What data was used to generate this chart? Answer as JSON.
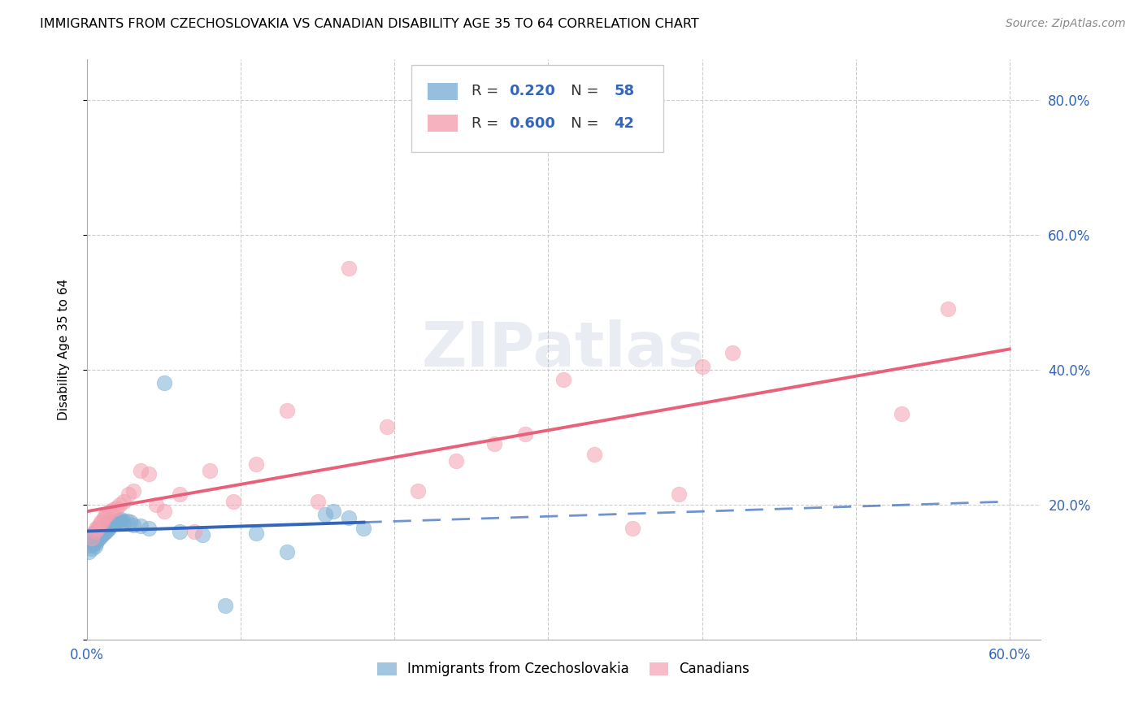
{
  "title": "IMMIGRANTS FROM CZECHOSLOVAKIA VS CANADIAN DISABILITY AGE 35 TO 64 CORRELATION CHART",
  "source": "Source: ZipAtlas.com",
  "ylabel": "Disability Age 35 to 64",
  "xlim": [
    0.0,
    0.62
  ],
  "ylim": [
    0.0,
    0.86
  ],
  "x_tick_values": [
    0.0,
    0.1,
    0.2,
    0.3,
    0.4,
    0.5,
    0.6
  ],
  "x_tick_labels_show": {
    "0.0": "0.0%",
    "0.6": "60.0%"
  },
  "right_y_tick_values": [
    0.2,
    0.4,
    0.6,
    0.8
  ],
  "right_y_tick_labels": [
    "20.0%",
    "40.0%",
    "60.0%",
    "80.0%"
  ],
  "blue_color": "#7BAFD4",
  "blue_line_color": "#3366BB",
  "pink_color": "#F4A0B0",
  "pink_line_color": "#E8607A",
  "blue_R": 0.22,
  "blue_N": 58,
  "pink_R": 0.6,
  "pink_N": 42,
  "watermark": "ZIPatlas",
  "blue_scatter_x": [
    0.001,
    0.002,
    0.002,
    0.003,
    0.003,
    0.003,
    0.004,
    0.004,
    0.004,
    0.005,
    0.005,
    0.005,
    0.006,
    0.006,
    0.006,
    0.007,
    0.007,
    0.007,
    0.008,
    0.008,
    0.008,
    0.009,
    0.009,
    0.01,
    0.01,
    0.011,
    0.011,
    0.012,
    0.012,
    0.013,
    0.013,
    0.014,
    0.014,
    0.015,
    0.015,
    0.016,
    0.017,
    0.018,
    0.019,
    0.02,
    0.021,
    0.022,
    0.024,
    0.026,
    0.028,
    0.03,
    0.035,
    0.04,
    0.05,
    0.06,
    0.075,
    0.09,
    0.11,
    0.13,
    0.155,
    0.16,
    0.17,
    0.18
  ],
  "blue_scatter_y": [
    0.13,
    0.14,
    0.145,
    0.135,
    0.148,
    0.155,
    0.142,
    0.152,
    0.158,
    0.138,
    0.148,
    0.155,
    0.143,
    0.152,
    0.16,
    0.148,
    0.157,
    0.163,
    0.15,
    0.158,
    0.165,
    0.153,
    0.161,
    0.156,
    0.163,
    0.158,
    0.165,
    0.16,
    0.168,
    0.163,
    0.17,
    0.165,
    0.172,
    0.168,
    0.175,
    0.17,
    0.172,
    0.175,
    0.173,
    0.176,
    0.177,
    0.178,
    0.175,
    0.176,
    0.174,
    0.17,
    0.168,
    0.165,
    0.38,
    0.16,
    0.155,
    0.05,
    0.158,
    0.13,
    0.185,
    0.19,
    0.18,
    0.165
  ],
  "pink_scatter_x": [
    0.003,
    0.005,
    0.006,
    0.007,
    0.008,
    0.009,
    0.01,
    0.011,
    0.012,
    0.013,
    0.015,
    0.017,
    0.019,
    0.021,
    0.024,
    0.027,
    0.03,
    0.035,
    0.04,
    0.045,
    0.05,
    0.06,
    0.07,
    0.08,
    0.095,
    0.11,
    0.13,
    0.15,
    0.17,
    0.195,
    0.215,
    0.24,
    0.265,
    0.285,
    0.31,
    0.33,
    0.355,
    0.385,
    0.4,
    0.42,
    0.53,
    0.56
  ],
  "pink_scatter_y": [
    0.15,
    0.16,
    0.165,
    0.165,
    0.17,
    0.175,
    0.175,
    0.18,
    0.185,
    0.185,
    0.19,
    0.192,
    0.195,
    0.2,
    0.205,
    0.215,
    0.22,
    0.25,
    0.245,
    0.2,
    0.19,
    0.215,
    0.16,
    0.25,
    0.205,
    0.26,
    0.34,
    0.205,
    0.55,
    0.315,
    0.22,
    0.265,
    0.29,
    0.305,
    0.385,
    0.275,
    0.165,
    0.215,
    0.405,
    0.425,
    0.335,
    0.49
  ]
}
